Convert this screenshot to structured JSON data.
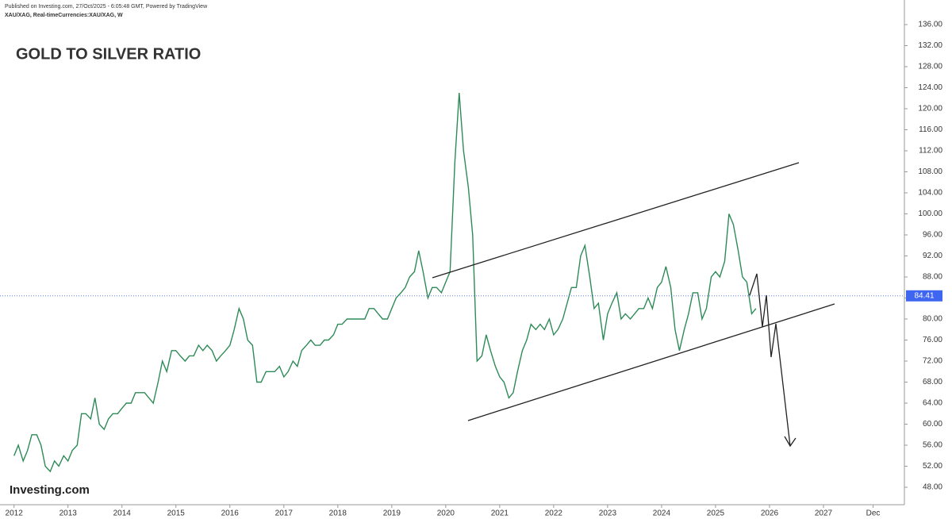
{
  "header": {
    "published": "Published on Investing.com, 27/Oct/2025 - 6:05:48 GMT, Powered by TradingView",
    "symbol": "XAU/XAG, Real-timeCurrencies:XAU/XAG, W"
  },
  "logo": "Investing.com",
  "chart_data": {
    "type": "line",
    "title": "GOLD TO SILVER RATIO",
    "color": "#2e8b57",
    "x": [
      2012,
      2012.08,
      2012.17,
      2012.25,
      2012.33,
      2012.42,
      2012.5,
      2012.58,
      2012.67,
      2012.75,
      2012.83,
      2012.92,
      2013,
      2013.08,
      2013.17,
      2013.25,
      2013.33,
      2013.42,
      2013.5,
      2013.58,
      2013.67,
      2013.75,
      2013.83,
      2013.92,
      2014,
      2014.08,
      2014.17,
      2014.25,
      2014.33,
      2014.42,
      2014.5,
      2014.58,
      2014.67,
      2014.75,
      2014.83,
      2014.92,
      2015,
      2015.08,
      2015.17,
      2015.25,
      2015.33,
      2015.42,
      2015.5,
      2015.58,
      2015.67,
      2015.75,
      2015.83,
      2015.92,
      2016,
      2016.08,
      2016.17,
      2016.25,
      2016.33,
      2016.42,
      2016.5,
      2016.58,
      2016.67,
      2016.75,
      2016.83,
      2016.92,
      2017,
      2017.08,
      2017.17,
      2017.25,
      2017.33,
      2017.42,
      2017.5,
      2017.58,
      2017.67,
      2017.75,
      2017.83,
      2017.92,
      2018,
      2018.08,
      2018.17,
      2018.25,
      2018.33,
      2018.42,
      2018.5,
      2018.58,
      2018.67,
      2018.75,
      2018.83,
      2018.92,
      2019,
      2019.08,
      2019.17,
      2019.25,
      2019.33,
      2019.42,
      2019.5,
      2019.58,
      2019.67,
      2019.75,
      2019.83,
      2019.92,
      2020,
      2020.08,
      2020.17,
      2020.25,
      2020.33,
      2020.42,
      2020.5,
      2020.58,
      2020.67,
      2020.75,
      2020.83,
      2020.92,
      2021,
      2021.08,
      2021.17,
      2021.25,
      2021.33,
      2021.42,
      2021.5,
      2021.58,
      2021.67,
      2021.75,
      2021.83,
      2021.92,
      2022,
      2022.08,
      2022.17,
      2022.25,
      2022.33,
      2022.42,
      2022.5,
      2022.58,
      2022.67,
      2022.75,
      2022.83,
      2022.92,
      2023,
      2023.08,
      2023.17,
      2023.25,
      2023.33,
      2023.42,
      2023.5,
      2023.58,
      2023.67,
      2023.75,
      2023.83,
      2023.92,
      2024,
      2024.08,
      2024.17,
      2024.25,
      2024.33,
      2024.42,
      2024.5,
      2024.58,
      2024.67,
      2024.75,
      2024.83,
      2024.92,
      2025,
      2025.08,
      2025.17,
      2025.25,
      2025.33,
      2025.42,
      2025.5,
      2025.58,
      2025.67,
      2025.75
    ],
    "values": [
      54,
      56,
      53,
      55,
      58,
      58,
      56,
      52,
      51,
      53,
      52,
      54,
      53,
      55,
      56,
      62,
      62,
      61,
      65,
      60,
      59,
      61,
      62,
      62,
      63,
      64,
      64,
      66,
      66,
      66,
      65,
      64,
      68,
      72,
      70,
      74,
      74,
      73,
      72,
      73,
      73,
      75,
      74,
      75,
      74,
      72,
      73,
      74,
      75,
      78,
      82,
      80,
      76,
      75,
      68,
      68,
      70,
      70,
      70,
      71,
      69,
      70,
      72,
      71,
      74,
      75,
      76,
      75,
      75,
      76,
      76,
      77,
      79,
      79,
      80,
      80,
      80,
      80,
      80,
      82,
      82,
      81,
      80,
      80,
      82,
      84,
      85,
      86,
      88,
      89,
      93,
      89,
      84,
      86,
      86,
      85,
      87,
      89,
      110,
      123,
      112,
      105,
      96,
      72,
      73,
      77,
      74,
      71,
      69,
      68,
      65,
      66,
      70,
      74,
      76,
      79,
      78,
      79,
      78,
      80,
      77,
      78,
      80,
      83,
      86,
      86,
      92,
      94,
      88,
      82,
      83,
      76,
      81,
      83,
      85,
      80,
      81,
      80,
      81,
      82,
      82,
      84,
      82,
      86,
      87,
      90,
      86,
      78,
      74,
      78,
      81,
      85,
      85,
      80,
      82,
      88,
      89,
      88,
      91,
      100,
      98,
      93,
      88,
      87,
      81,
      82
    ],
    "last_price": 84.41,
    "xlim": [
      2011.74,
      2028.5
    ],
    "xticks": [
      2012,
      2013,
      2014,
      2015,
      2016,
      2017,
      2018,
      2019,
      2020,
      2021,
      2022,
      2023,
      2024,
      2025,
      2026,
      2027,
      {
        "value": 2027.92,
        "label": "Dec"
      }
    ],
    "ylim": [
      44.68,
      140.68
    ],
    "yticks": [
      {
        "value": 48,
        "label": "48.00"
      },
      {
        "value": 52,
        "label": "52.00"
      },
      {
        "value": 56,
        "label": "56.00"
      },
      {
        "value": 60,
        "label": "60.00"
      },
      {
        "value": 64,
        "label": "64.00"
      },
      {
        "value": 68,
        "label": "68.00"
      },
      {
        "value": 72,
        "label": "72.00"
      },
      {
        "value": 76,
        "label": "76.00"
      },
      {
        "value": 80,
        "label": "80.00"
      },
      {
        "value": 84,
        "label": "84.00"
      },
      {
        "value": 88,
        "label": "88.00"
      },
      {
        "value": 92,
        "label": "92.00"
      },
      {
        "value": 96,
        "label": "96.00"
      },
      {
        "value": 100,
        "label": "100.00"
      },
      {
        "value": 104,
        "label": "104.00"
      },
      {
        "value": 108,
        "label": "108.00"
      },
      {
        "value": 112,
        "label": "112.00"
      },
      {
        "value": 116,
        "label": "116.00"
      },
      {
        "value": 120,
        "label": "120.00"
      },
      {
        "value": 124,
        "label": "124.00"
      },
      {
        "value": 128,
        "label": "128.00"
      },
      {
        "value": 132,
        "label": "132.00"
      },
      {
        "value": 136,
        "label": "136.00"
      }
    ]
  }
}
